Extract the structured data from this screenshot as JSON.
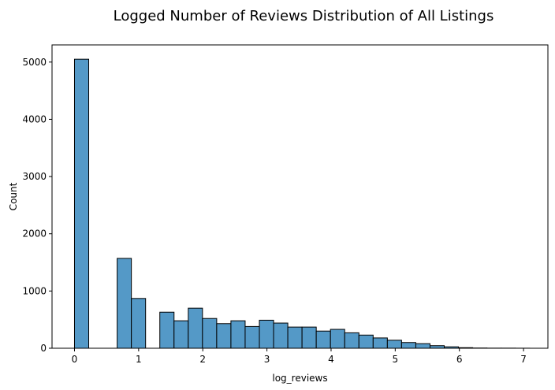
{
  "chart_data": {
    "type": "bar",
    "title": "Logged Number of Reviews Distribution of All Listings",
    "xlabel": "log_reviews",
    "ylabel": "Count",
    "xlim": [
      -0.35,
      7.38
    ],
    "ylim": [
      0,
      5300
    ],
    "xticks": [
      0,
      1,
      2,
      3,
      4,
      5,
      6,
      7
    ],
    "yticks": [
      0,
      1000,
      2000,
      3000,
      4000,
      5000
    ],
    "grid": false,
    "bar_color": "#5499c7",
    "edge_color": "#000000",
    "bin_width": 0.2217,
    "bins": [
      {
        "x0": 0.0,
        "count": 5050
      },
      {
        "x0": 0.2217,
        "count": 0
      },
      {
        "x0": 0.4434,
        "count": 0
      },
      {
        "x0": 0.6651,
        "count": 1570
      },
      {
        "x0": 0.8868,
        "count": 870
      },
      {
        "x0": 1.1085,
        "count": 0
      },
      {
        "x0": 1.3302,
        "count": 630
      },
      {
        "x0": 1.5519,
        "count": 480
      },
      {
        "x0": 1.7736,
        "count": 700
      },
      {
        "x0": 1.9953,
        "count": 520
      },
      {
        "x0": 2.217,
        "count": 430
      },
      {
        "x0": 2.4387,
        "count": 480
      },
      {
        "x0": 2.6604,
        "count": 380
      },
      {
        "x0": 2.8821,
        "count": 490
      },
      {
        "x0": 3.1038,
        "count": 440
      },
      {
        "x0": 3.3255,
        "count": 370
      },
      {
        "x0": 3.5472,
        "count": 370
      },
      {
        "x0": 3.7689,
        "count": 300
      },
      {
        "x0": 3.9906,
        "count": 330
      },
      {
        "x0": 4.2123,
        "count": 270
      },
      {
        "x0": 4.434,
        "count": 230
      },
      {
        "x0": 4.6557,
        "count": 180
      },
      {
        "x0": 4.8774,
        "count": 140
      },
      {
        "x0": 5.0991,
        "count": 100
      },
      {
        "x0": 5.3208,
        "count": 80
      },
      {
        "x0": 5.5425,
        "count": 45
      },
      {
        "x0": 5.7642,
        "count": 25
      },
      {
        "x0": 5.9859,
        "count": 10
      },
      {
        "x0": 6.2076,
        "count": 4
      },
      {
        "x0": 6.4293,
        "count": 2
      },
      {
        "x0": 6.651,
        "count": 2
      },
      {
        "x0": 6.8727,
        "count": 1
      }
    ]
  }
}
